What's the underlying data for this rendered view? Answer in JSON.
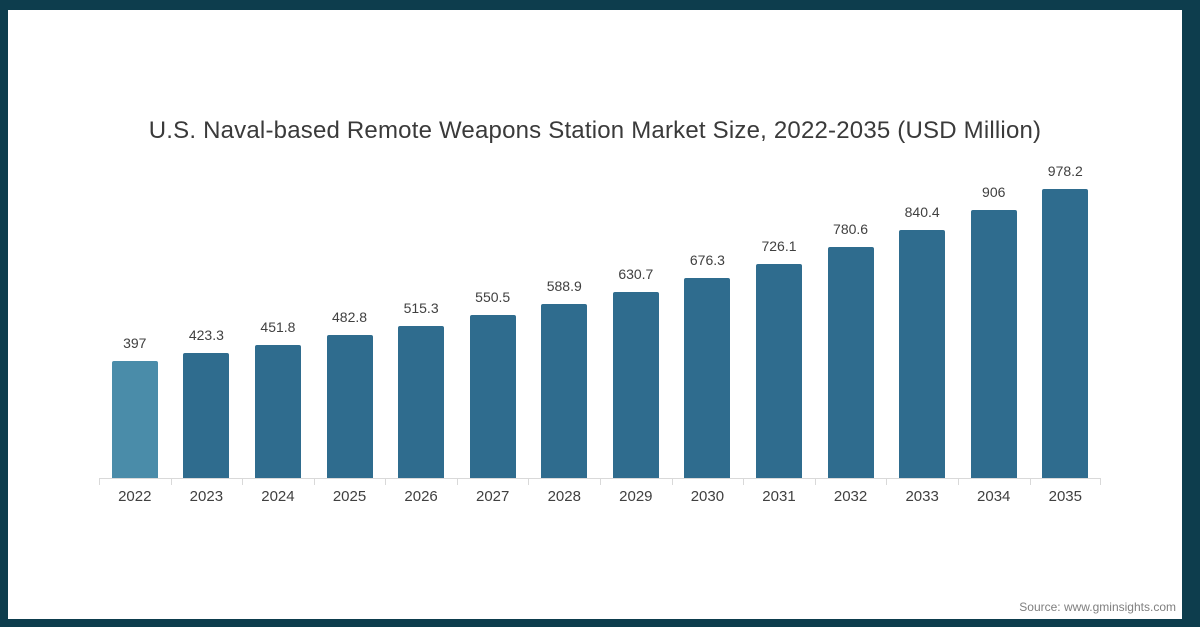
{
  "title": "U.S. Naval-based Remote Weapons Station Market Size, 2022-2035 (USD Million)",
  "source": "Source: www.gminsights.com",
  "chart_data": {
    "type": "bar",
    "title": "U.S. Naval-based Remote Weapons Station Market Size, 2022-2035 (USD Million)",
    "categories": [
      "2022",
      "2023",
      "2024",
      "2025",
      "2026",
      "2027",
      "2028",
      "2029",
      "2030",
      "2031",
      "2032",
      "2033",
      "2034",
      "2035"
    ],
    "values": [
      397,
      423.3,
      451.8,
      482.8,
      515.3,
      550.5,
      588.9,
      630.7,
      676.3,
      726.1,
      780.6,
      840.4,
      906,
      978.2
    ],
    "value_labels": [
      "397",
      "423.3",
      "451.8",
      "482.8",
      "515.3",
      "550.5",
      "588.9",
      "630.7",
      "676.3",
      "726.1",
      "780.6",
      "840.4",
      "906",
      "978.2"
    ],
    "xlabel": "",
    "ylabel": "",
    "ylim": [
      0,
      978.2
    ],
    "grid": false,
    "legend": "none",
    "y_axis_visible": false,
    "colors": {
      "bar": "#2F6C8E",
      "bar_first_highlight": "#4A8CA9",
      "axis_line": "#D9D9D9",
      "label_text": "#404040",
      "title_text": "#3A3A3A",
      "source_text": "#7F7F7F",
      "frame": "#0D3D4D"
    }
  }
}
